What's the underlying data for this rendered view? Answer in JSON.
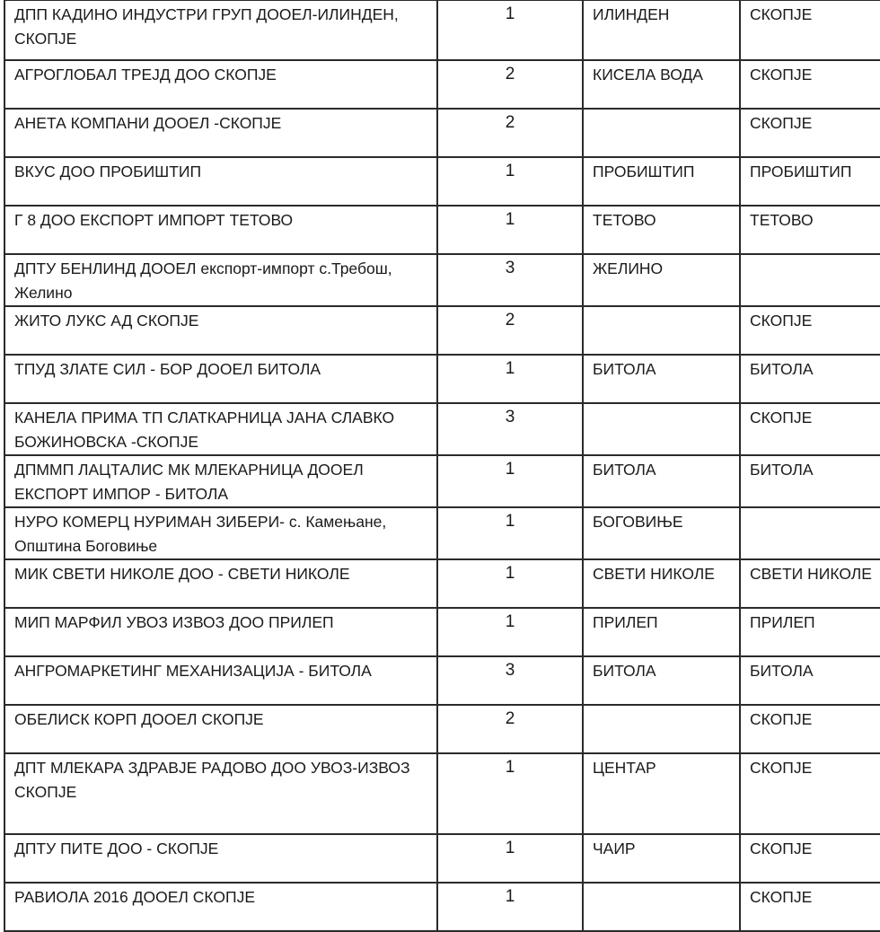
{
  "table": {
    "rows": [
      {
        "name": "ДПП КАДИНО ИНДУСТРИ ГРУП ДООЕЛ-ИЛИНДЕН, СКОПЈЕ",
        "count": "1",
        "municipality": "ИЛИНДЕН",
        "city": "СКОПЈЕ"
      },
      {
        "name": "АГРОГЛОБАЛ ТРЕЈД ДОО СКОПЈЕ",
        "count": "2",
        "municipality": "КИСЕЛА ВОДА",
        "city": "СКОПЈЕ"
      },
      {
        "name": "АНЕТА КОМПАНИ ДООЕЛ -СКОПЈЕ",
        "count": "2",
        "municipality": "",
        "city": "СКОПЈЕ"
      },
      {
        "name": "ВКУС ДОО ПРОБИШТИП",
        "count": "1",
        "municipality": "ПРОБИШТИП",
        "city": "ПРОБИШТИП"
      },
      {
        "name": "Г 8 ДОО ЕКСПОРТ ИМПОРТ ТЕТОВО",
        "count": "1",
        "municipality": "ТЕТОВО",
        "city": "ТЕТОВО"
      },
      {
        "name": "ДПТУ БЕНЛИНД ДООЕЛ експорт-импорт с.Требош, Желино",
        "count": "3",
        "municipality": "ЖЕЛИНО",
        "city": ""
      },
      {
        "name": "ЖИТО ЛУКС АД СКОПЈЕ",
        "count": "2",
        "municipality": "",
        "city": "СКОПЈЕ"
      },
      {
        "name": "ТПУД ЗЛАТЕ СИЛ - БОР ДООЕЛ БИТОЛА",
        "count": "1",
        "municipality": "БИТОЛА",
        "city": "БИТОЛА"
      },
      {
        "name": "КАНЕЛА ПРИМА ТП СЛАТКАРНИЦА ЈАНА СЛАВКО БОЖИНОВСКА -СКОПЈЕ",
        "count": "3",
        "municipality": "",
        "city": "СКОПЈЕ"
      },
      {
        "name": "ДПММП ЛАЦТАЛИС МК МЛЕКАРНИЦА ДООЕЛ ЕКСПОРТ ИМПОР - БИТОЛА",
        "count": "1",
        "municipality": " БИТОЛА",
        "city": " БИТОЛА"
      },
      {
        "name": "НУРО КОМЕРЦ НУРИМАН ЗИБЕРИ- с. Камењане, Општина Боговиње",
        "count": "1",
        "municipality": "БОГОВИЊЕ",
        "city": ""
      },
      {
        "name": "МИК СВЕТИ НИКОЛЕ ДОО - СВЕТИ НИКОЛЕ",
        "count": "1",
        "municipality": "СВЕТИ НИКОЛЕ",
        "city": "СВЕТИ НИКОЛЕ"
      },
      {
        "name": "МИП МАРФИЛ УВОЗ ИЗВОЗ ДОО ПРИЛЕП",
        "count": "1",
        "municipality": "ПРИЛЕП",
        "city": "ПРИЛЕП"
      },
      {
        "name": "АНГРОМАРКЕТИНГ МЕХАНИЗАЦИЈА - БИТОЛА",
        "count": "3",
        "municipality": "БИТОЛА",
        "city": "БИТОЛА"
      },
      {
        "name": "ОБЕЛИСК КОРП ДООЕЛ СКОПЈЕ",
        "count": "2",
        "municipality": "",
        "city": "СКОПЈЕ"
      },
      {
        "name": "ДПТ МЛЕКАРА ЗДРАВЈЕ РАДОВО ДОО УВОЗ-ИЗВОЗ СКОПЈЕ",
        "count": "1",
        "municipality": "ЦЕНТАР",
        "city": "СКОПЈЕ"
      },
      {
        "name": "ДПТУ ПИТЕ ДОО - СКОПЈЕ",
        "count": "1",
        "municipality": "ЧАИР",
        "city": "СКОПЈЕ"
      },
      {
        "name": "РАВИОЛА 2016 ДООЕЛ  СКОПЈЕ",
        "count": "1",
        "municipality": "",
        "city": "СКОПЈЕ"
      }
    ]
  }
}
